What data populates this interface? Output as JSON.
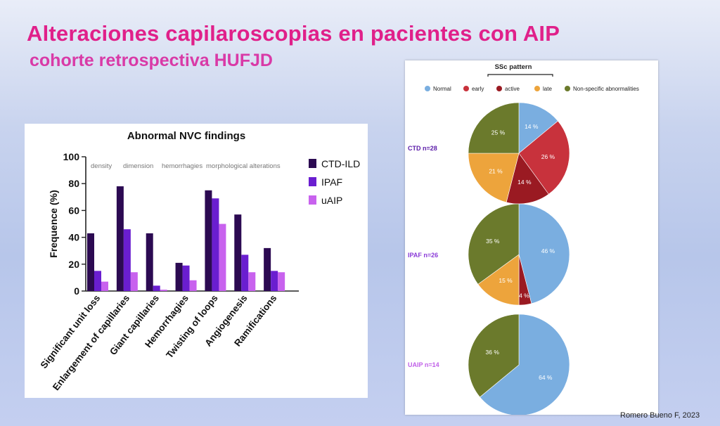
{
  "slide": {
    "title": "Alteraciones capilaroscopias en pacientes con AIP",
    "subtitle": "cohorte retrospectiva HUFJD",
    "credit": "Romero Bueno F, 2023"
  },
  "chart_data": [
    {
      "type": "bar",
      "title": "Abnormal NVC findings",
      "ylabel": "Frequence (%)",
      "xlabel": "",
      "ylim": [
        0,
        100
      ],
      "yticks": [
        0,
        20,
        40,
        60,
        80,
        100
      ],
      "categories": [
        "Significant unit loss",
        "Enlargement of capillaries",
        "Giant capillaries",
        "Hemorrhagies",
        "Twisting of loops",
        "Angiogenesis",
        "Ramifications"
      ],
      "series": [
        {
          "name": "CTD-ILD",
          "color": "#2c0a52",
          "values": [
            43,
            78,
            43,
            21,
            75,
            57,
            32
          ]
        },
        {
          "name": "IPAF",
          "color": "#6a1ed0",
          "values": [
            15,
            46,
            4,
            19,
            69,
            27,
            15
          ]
        },
        {
          "name": "uAIP",
          "color": "#c862ee",
          "values": [
            7,
            14,
            1,
            8,
            50,
            14,
            14
          ]
        }
      ],
      "annotations": [
        "density",
        "dimension",
        "hemorrhagies",
        "morphological alterations"
      ],
      "legend_position": "right"
    },
    {
      "type": "pie",
      "title": "SSc pattern",
      "legend_position": "top",
      "legend": [
        {
          "label": "Normal",
          "color": "#7aaee0"
        },
        {
          "label": "early",
          "color": "#c8323c"
        },
        {
          "label": "active",
          "color": "#9a1a22"
        },
        {
          "label": "late",
          "color": "#eda43c"
        },
        {
          "label": "Non-specific abnormalities",
          "color": "#6b7a2c"
        }
      ],
      "pies": [
        {
          "label": "CTD n=28",
          "label_color": "#5a1aa8",
          "slices": [
            {
              "category": "Normal",
              "value": 14,
              "text": "14 %"
            },
            {
              "category": "early",
              "value": 26,
              "text": "26 %"
            },
            {
              "category": "active",
              "value": 14,
              "text": "14 %"
            },
            {
              "category": "late",
              "value": 21,
              "text": "21 %"
            },
            {
              "category": "Non-specific abnormalities",
              "value": 25,
              "text": "25 %"
            }
          ]
        },
        {
          "label": "IPAF n=26",
          "label_color": "#8a3ad8",
          "slices": [
            {
              "category": "Normal",
              "value": 46,
              "text": "46 %"
            },
            {
              "category": "active",
              "value": 4,
              "text": "4 %"
            },
            {
              "category": "late",
              "value": 15,
              "text": "15 %"
            },
            {
              "category": "Non-specific abnormalities",
              "value": 35,
              "text": "35 %"
            }
          ]
        },
        {
          "label": "UAIP n=14",
          "label_color": "#c060e8",
          "slices": [
            {
              "category": "Normal",
              "value": 64,
              "text": "64 %"
            },
            {
              "category": "Non-specific abnormalities",
              "value": 36,
              "text": "36 %"
            }
          ]
        }
      ]
    }
  ]
}
